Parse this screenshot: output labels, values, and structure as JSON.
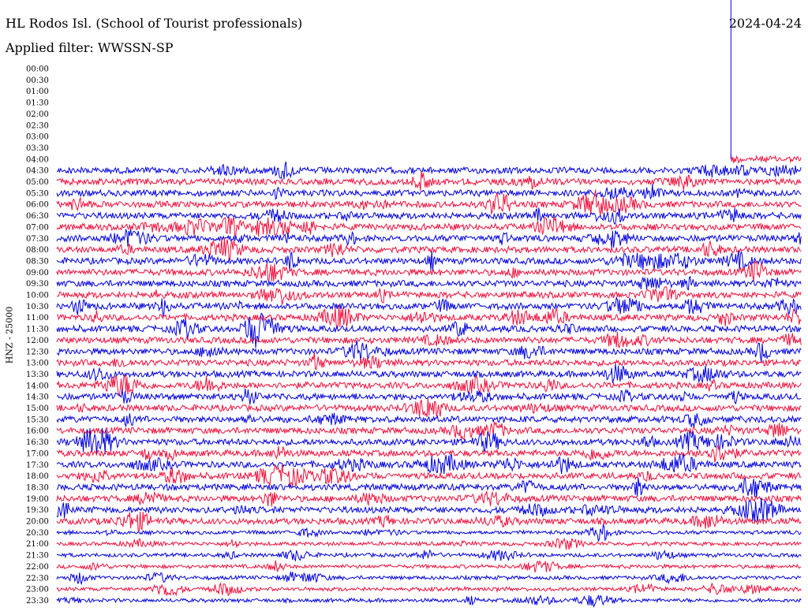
{
  "header": {
    "station": "HL Rodos Isl. (School of Tourist professionals)",
    "date": "2024-04-24",
    "filter": "Applied filter: WWSSN-SP",
    "channel": "HNZ - 25000"
  },
  "chart_data": {
    "type": "line",
    "title": "HL Rodos Isl. (School of Tourist professionals)",
    "subtitle": "Applied filter: WWSSN-SP",
    "ylabel": "HNZ - 25000",
    "row_labels": [
      "00:00",
      "00:30",
      "01:00",
      "01:30",
      "02:00",
      "02:30",
      "03:00",
      "03:30",
      "04:00",
      "04:30",
      "05:00",
      "05:30",
      "06:00",
      "06:30",
      "07:00",
      "07:30",
      "08:00",
      "08:30",
      "09:00",
      "09:30",
      "10:00",
      "10:30",
      "11:00",
      "11:30",
      "12:00",
      "12:30",
      "13:00",
      "13:30",
      "14:00",
      "14:30",
      "15:00",
      "15:30",
      "16:00",
      "16:30",
      "17:00",
      "17:30",
      "18:00",
      "18:30",
      "19:00",
      "19:30",
      "20:00",
      "20:30",
      "21:00",
      "21:30",
      "22:00",
      "22:30",
      "23:00",
      "23:30"
    ],
    "data_start_row": "04:00",
    "data_start_fraction": 0.905,
    "event_marker_fraction": 0.905,
    "trace_colors": [
      "#0000e0",
      "#f0103c"
    ],
    "marker_color": "#0000e0",
    "grid": false,
    "legend": "none"
  }
}
